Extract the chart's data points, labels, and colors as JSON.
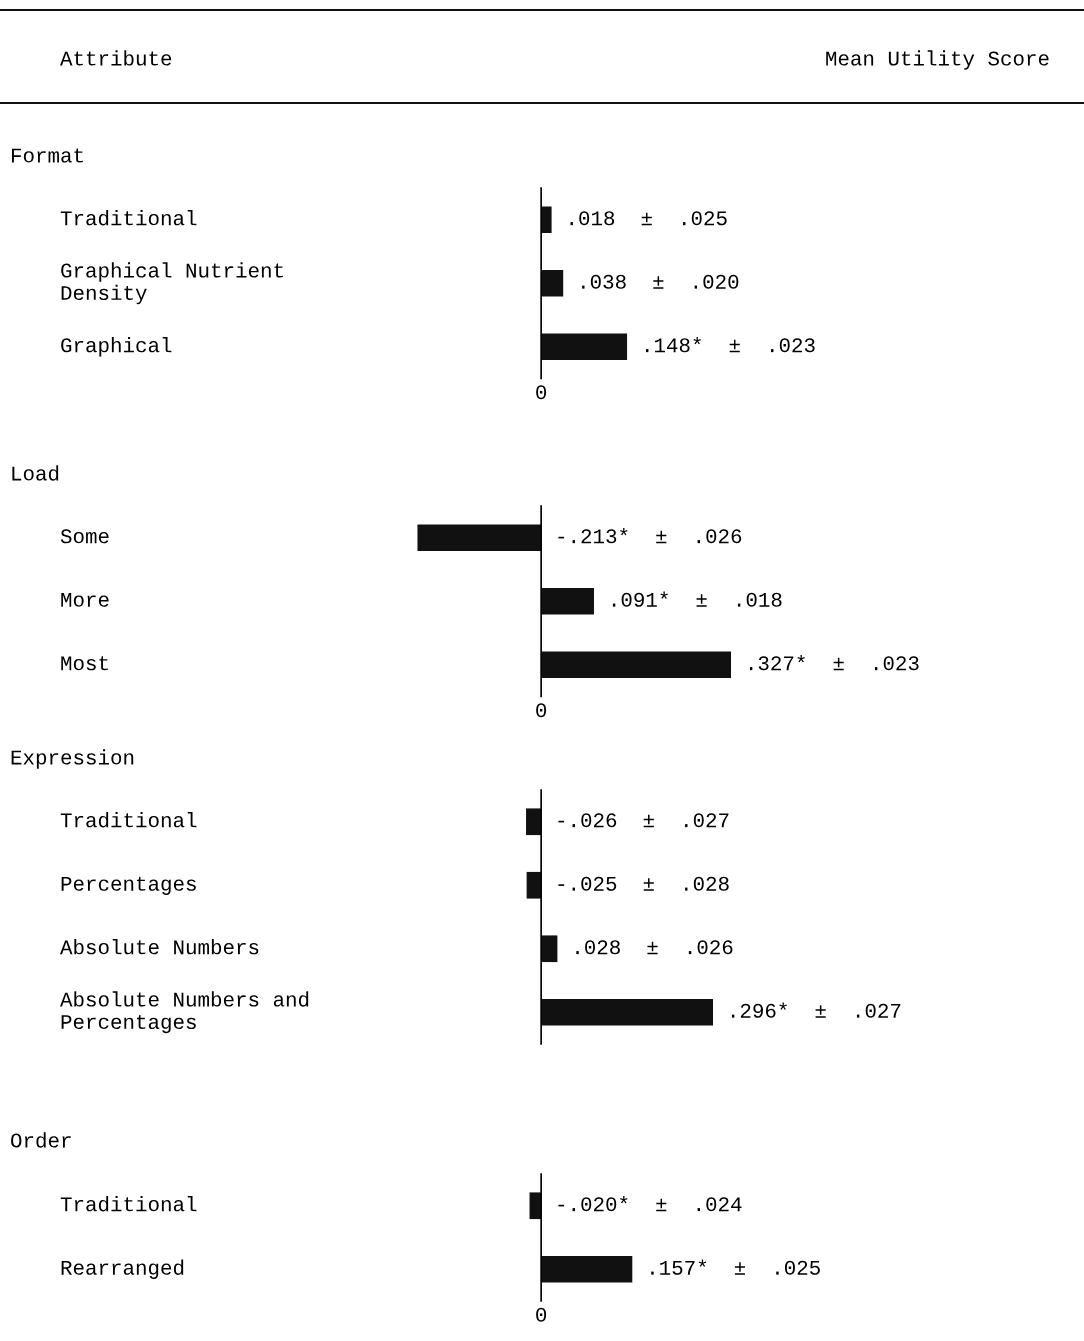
{
  "chart_data": [
    {
      "type": "bar",
      "orientation": "horizontal",
      "title": "Format",
      "annotations": [
        "Attribute",
        "Mean Utility Score",
        "0"
      ],
      "categories": [
        "Traditional",
        "Graphical Nutrient\nDensity",
        "Graphical"
      ],
      "values": [
        0.018,
        0.038,
        0.148
      ],
      "color": "#111111",
      "value_labels": [
        ".018  ±  .025",
        ".038  ±  .020",
        ".148*  ±  .023"
      ]
    },
    {
      "type": "bar",
      "orientation": "horizontal",
      "title": "Load",
      "annotations": [
        "0"
      ],
      "categories": [
        "Some",
        "More",
        "Most"
      ],
      "values": [
        -0.213,
        0.091,
        0.327
      ],
      "color": "#111111",
      "value_labels": [
        "-.213*  ±  .026",
        ".091*  ±  .018",
        ".327*  ±  .023"
      ]
    },
    {
      "type": "bar",
      "orientation": "horizontal",
      "title": "Expression",
      "categories": [
        "Traditional",
        "Percentages",
        "Absolute Numbers",
        "Absolute Numbers and\nPercentages"
      ],
      "values": [
        -0.026,
        -0.025,
        0.028,
        0.296
      ],
      "color": "#111111",
      "value_labels": [
        "-.026  ±  .027",
        "-.025  ±  .028",
        ".028  ±  .026",
        ".296*  ±  .027"
      ]
    },
    {
      "type": "bar",
      "orientation": "horizontal",
      "title": "Order",
      "annotations": [
        "0"
      ],
      "categories": [
        "Traditional",
        "Rearranged"
      ],
      "values": [
        -0.02,
        0.157
      ],
      "color": "#111111",
      "value_labels": [
        "-.020*  ±  .024",
        ".157*  ±  .025"
      ]
    }
  ]
}
